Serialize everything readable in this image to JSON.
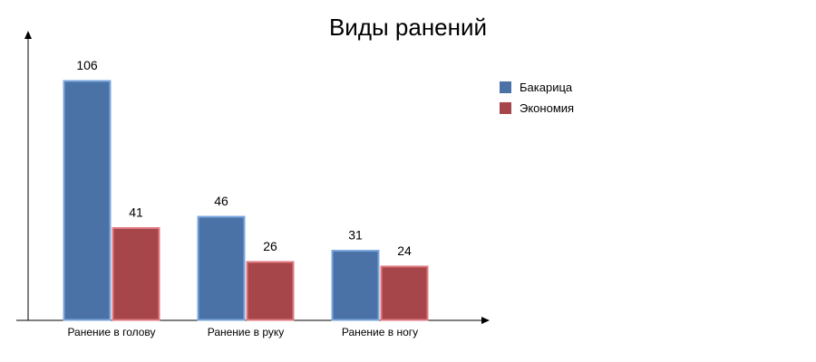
{
  "chart_data": {
    "type": "bar",
    "title": "Виды ранений",
    "xlabel": "",
    "ylabel": "",
    "categories": [
      "Ранение в голову",
      "Ранение в руку",
      "Ранение в ногу"
    ],
    "series": [
      {
        "name": "Бакарица",
        "values": [
          106,
          46,
          31
        ],
        "color": "#4A72A6",
        "edge": "#7BA7DD"
      },
      {
        "name": "Экономия",
        "values": [
          41,
          26,
          24
        ],
        "color": "#A6464A",
        "edge": "#E07A80"
      }
    ],
    "ylim": [
      0,
      106
    ],
    "grid": false,
    "legend": "right",
    "data_labels": true
  }
}
